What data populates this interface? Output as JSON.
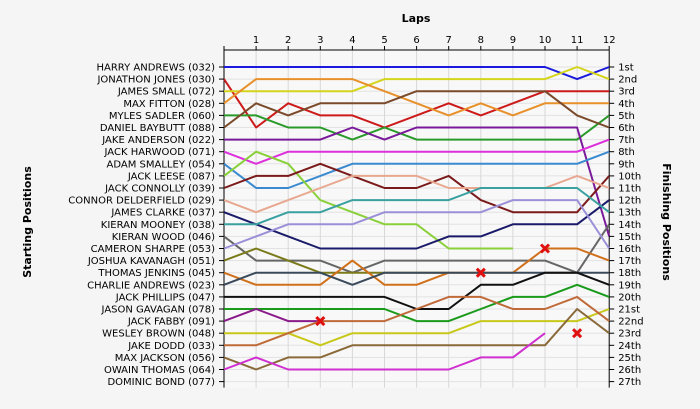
{
  "chart_data": {
    "type": "line",
    "title": "Laps",
    "left_label": "Starting Positions",
    "right_label": "Finishing Positions",
    "x": [
      1,
      2,
      3,
      4,
      5,
      6,
      7,
      8,
      9,
      10,
      11,
      12
    ],
    "start_labels": [
      "HARRY ANDREWS (032)",
      "JONATHON JONES (030)",
      "JAMES SMALL (072)",
      "MAX FITTON (028)",
      "MYLES SADLER (060)",
      "DANIEL BAYBUTT (088)",
      "JAKE ANDERSON (022)",
      "JACK HARWOOD (071)",
      "ADAM SMALLEY (054)",
      "JACK LEESE (087)",
      "JACK CONNOLLY (039)",
      "CONNOR DELDERFIELD (029)",
      "JAMES CLARKE (037)",
      "KIERAN MOONEY (038)",
      "KIERAN WOOD (046)",
      "CAMERON SHARPE (053)",
      "JOSHUA KAVANAGH (051)",
      "THOMAS JENKINS (045)",
      "CHARLIE ANDREWS (023)",
      "JACK PHILLIPS (047)",
      "JASON GAVAGAN (078)",
      "JACK FABBY (091)",
      "WESLEY BROWN (048)",
      "JAKE DODD (033)",
      "MAX JACKSON (056)",
      "OWAIN THOMAS (064)",
      "DOMINIC BOND (077)"
    ],
    "finish_labels": [
      "1st",
      "2nd",
      "3rd",
      "4th",
      "5th",
      "6th",
      "7th",
      "8th",
      "9th",
      "10th",
      "11th",
      "12th",
      "13th",
      "14th",
      "15th",
      "16th",
      "17th",
      "18th",
      "19th",
      "20th",
      "21st",
      "22nd",
      "23rd",
      "24th",
      "25th",
      "26th",
      "27th"
    ],
    "series": [
      {
        "color": "#1a1adc",
        "positions": [
          1,
          1,
          1,
          1,
          1,
          1,
          1,
          1,
          1,
          1,
          1,
          2,
          1
        ]
      },
      {
        "color": "#cc1a1a",
        "positions": [
          2,
          6,
          4,
          5,
          5,
          6,
          5,
          4,
          5,
          4,
          3,
          3,
          3
        ]
      },
      {
        "color": "#d4d41a",
        "positions": [
          3,
          3,
          3,
          3,
          3,
          2,
          2,
          2,
          2,
          2,
          2,
          1,
          2
        ]
      },
      {
        "color": "#e8902a",
        "positions": [
          4,
          2,
          2,
          2,
          2,
          3,
          4,
          5,
          4,
          5,
          4,
          4,
          4
        ]
      },
      {
        "color": "#2a9a2a",
        "positions": [
          5,
          5,
          6,
          6,
          7,
          6,
          7,
          7,
          7,
          7,
          7,
          7,
          5
        ]
      },
      {
        "color": "#7a4a2a",
        "positions": [
          6,
          4,
          5,
          4,
          4,
          4,
          3,
          3,
          3,
          3,
          3,
          5,
          6
        ]
      },
      {
        "color": "#7a1a9a",
        "positions": [
          7,
          7,
          7,
          7,
          6,
          7,
          6,
          6,
          6,
          6,
          6,
          6,
          15
        ]
      },
      {
        "color": "#dc30dc",
        "positions": [
          8,
          9,
          8,
          8,
          8,
          8,
          8,
          8,
          8,
          8,
          8,
          8,
          7
        ]
      },
      {
        "color": "#3a8ad0",
        "positions": [
          9,
          11,
          11,
          10,
          9,
          9,
          9,
          9,
          9,
          9,
          9,
          9,
          8
        ]
      },
      {
        "color": "#8ad03a",
        "positions": [
          10,
          8,
          9,
          12,
          13,
          14,
          14,
          16,
          16,
          16
        ]
      },
      {
        "color": "#7a1a1a",
        "positions": [
          11,
          10,
          10,
          9,
          10,
          11,
          11,
          10,
          12,
          13,
          13,
          13,
          10
        ]
      },
      {
        "color": "#e8a890",
        "positions": [
          12,
          13,
          12,
          11,
          10,
          10,
          10,
          11,
          11,
          11,
          11,
          10,
          11
        ]
      },
      {
        "color": "#1a1a6a",
        "positions": [
          13,
          14,
          15,
          16,
          16,
          16,
          16,
          15,
          15,
          14,
          14,
          14,
          12
        ]
      },
      {
        "color": "#3aa0a0",
        "positions": [
          14,
          14,
          13,
          13,
          12,
          12,
          12,
          12,
          11,
          11,
          11,
          11,
          13
        ]
      },
      {
        "color": "#666666",
        "positions": [
          15,
          17,
          17,
          17,
          18,
          17,
          17,
          17,
          17,
          17,
          17,
          18,
          14
        ]
      },
      {
        "color": "#9a90d8",
        "positions": [
          16,
          15,
          14,
          14,
          14,
          13,
          13,
          13,
          13,
          12,
          12,
          12,
          16
        ]
      },
      {
        "color": "#7a7a1a",
        "positions": [
          17,
          16,
          17,
          18,
          18,
          18,
          18,
          18
        ]
      },
      {
        "color": "#d0701a",
        "positions": [
          18,
          19,
          19,
          19,
          17,
          19,
          19,
          18,
          18,
          18,
          16,
          16,
          17
        ]
      },
      {
        "color": "#3a4a5a",
        "positions": [
          19,
          18,
          18,
          18,
          19,
          18,
          18,
          18,
          18,
          18,
          18,
          18,
          18
        ]
      },
      {
        "color": "#111111",
        "positions": [
          20,
          20,
          20,
          20,
          20,
          20,
          21,
          21,
          19,
          19,
          18,
          18,
          19
        ]
      },
      {
        "color": "#1a9a1a",
        "positions": [
          21,
          21,
          21,
          21,
          21,
          21,
          22,
          22,
          21,
          20,
          20,
          19,
          20
        ]
      },
      {
        "color": "#8a1a8a",
        "positions": [
          22,
          21,
          22,
          22
        ]
      },
      {
        "color": "#c8c81a",
        "positions": [
          23,
          23,
          23,
          24,
          23,
          23,
          23,
          23,
          22,
          22,
          22,
          22,
          21
        ]
      },
      {
        "color": "#c06a3a",
        "positions": [
          24,
          24,
          23,
          22,
          22,
          22,
          21,
          20,
          20,
          21,
          21,
          20,
          22
        ]
      },
      {
        "color": "#8a6a3a",
        "positions": [
          25,
          26,
          25,
          25,
          24,
          24,
          24,
          24,
          24,
          24,
          24,
          21,
          23
        ]
      },
      {
        "color": "#d030d0",
        "positions": [
          26,
          25,
          26,
          26,
          26,
          26,
          26,
          26,
          25,
          25,
          23
        ]
      }
    ],
    "dnf_markers": [
      {
        "lap": 3,
        "position": 22
      },
      {
        "lap": 8,
        "position": 18
      },
      {
        "lap": 10,
        "position": 16
      },
      {
        "lap": 11,
        "position": 23
      }
    ]
  }
}
